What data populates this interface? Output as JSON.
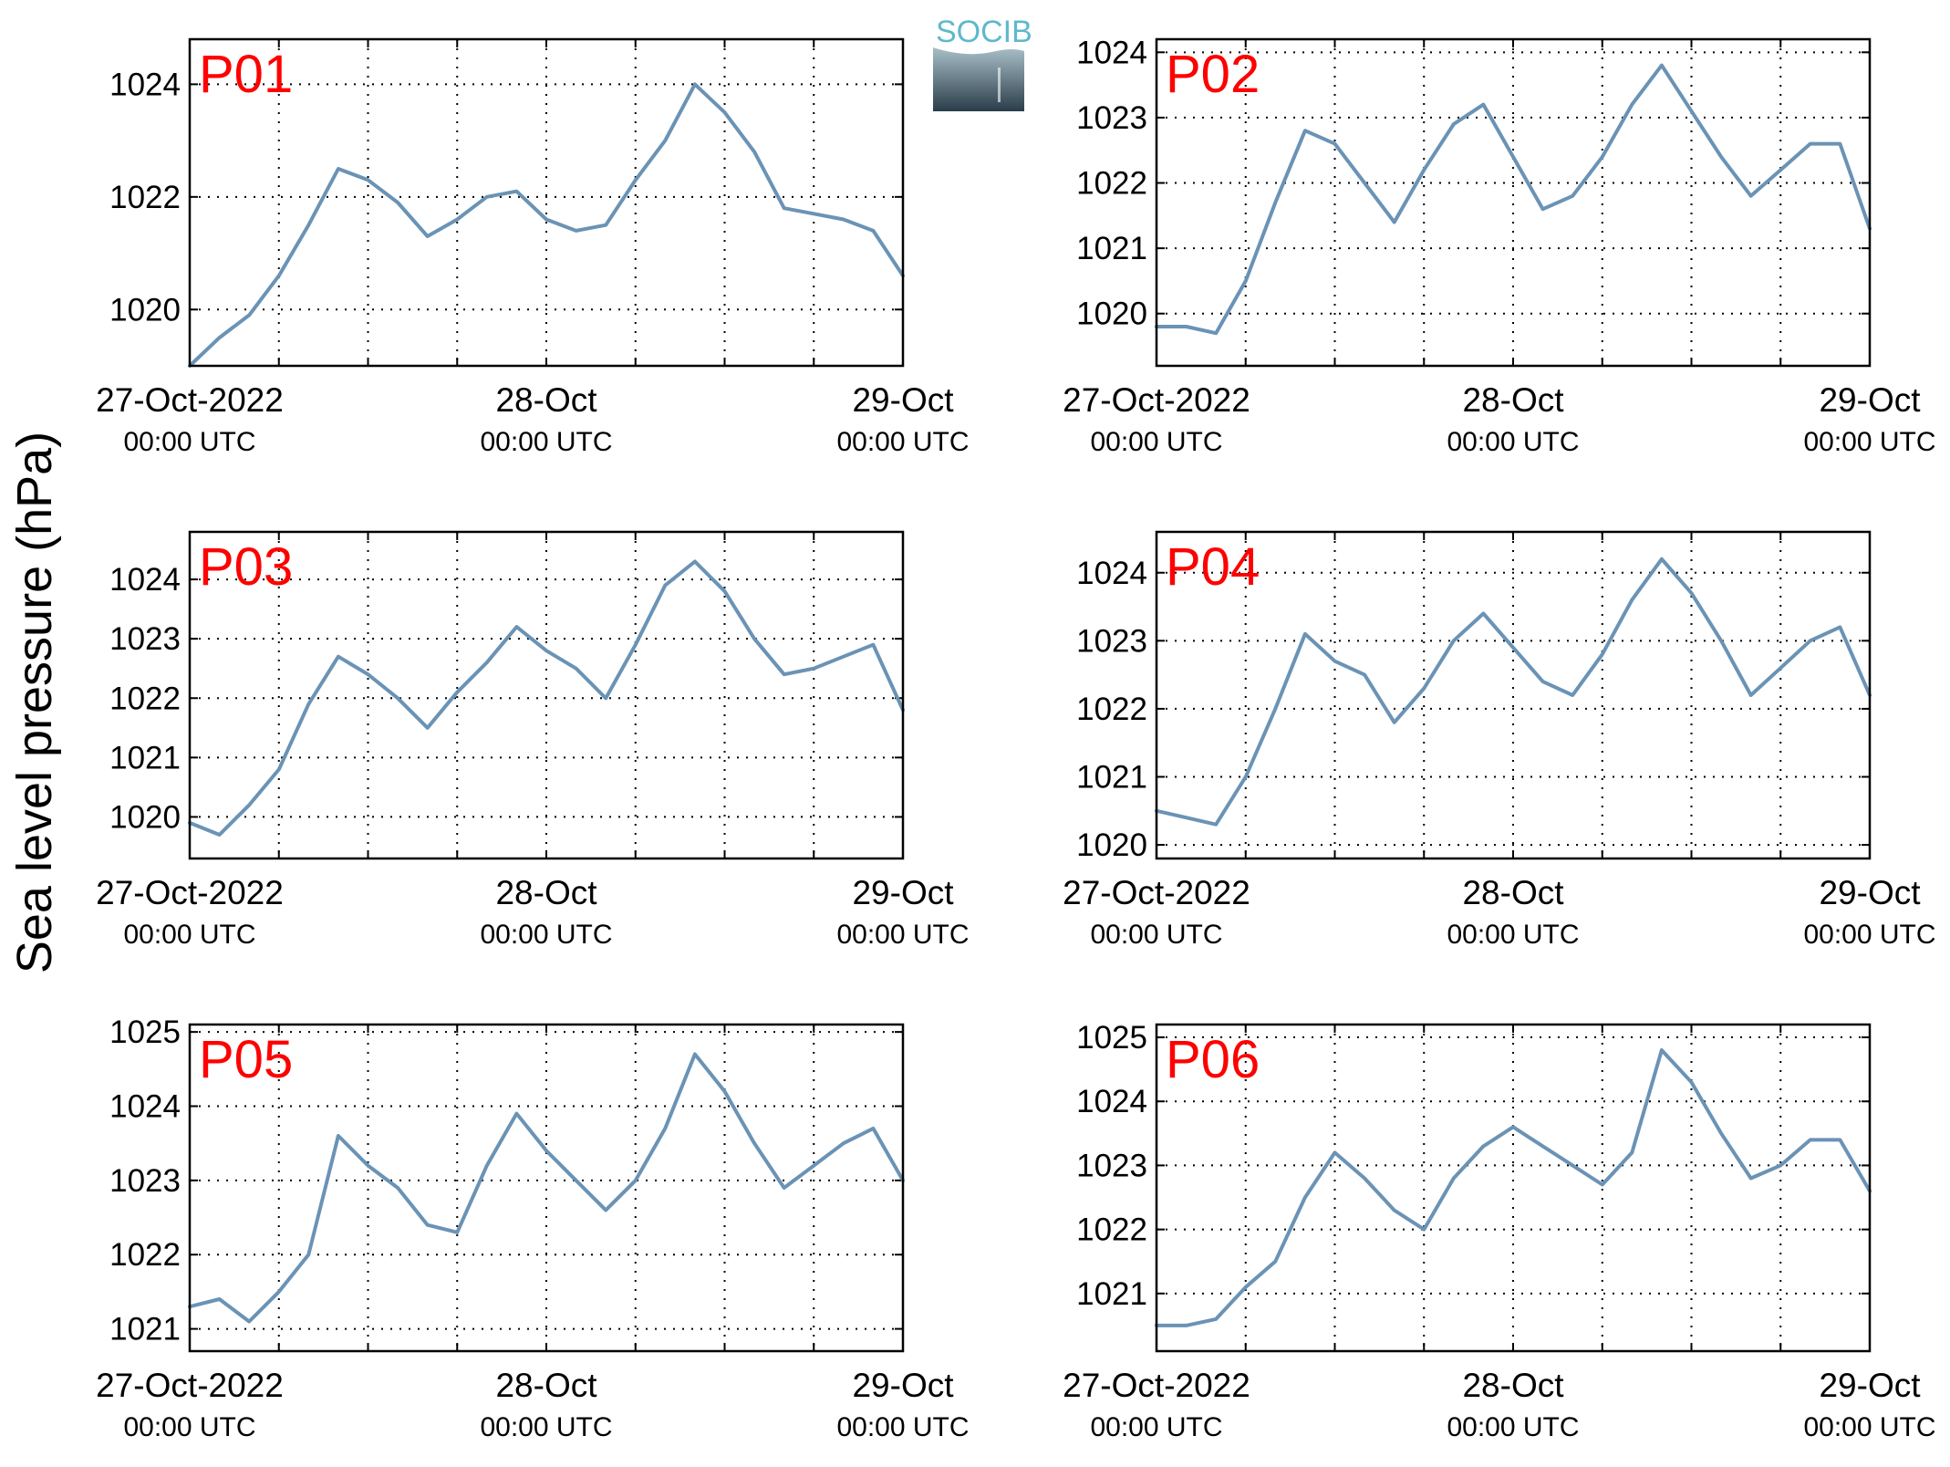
{
  "figure": {
    "ylabel": "Sea level pressure (hPa)",
    "logo_text": "SOCIB",
    "colors": {
      "line": "#6a93b5",
      "label": "#ff0000",
      "logo_top": "#5fb8cc",
      "logo_bottom": "#2a3d4a"
    }
  },
  "chart_data": [
    {
      "type": "line",
      "title": "P01",
      "xlabel": "",
      "ylabel": "Sea level pressure (hPa)",
      "xlim": [
        "2022-10-27T00:00",
        "2022-10-29T00:00"
      ],
      "ylim": [
        1019,
        1024.8
      ],
      "yticks": [
        1020,
        1022,
        1024
      ],
      "xtick_labels": [
        [
          "27-Oct-2022",
          "00:00 UTC"
        ],
        [
          "28-Oct",
          "00:00 UTC"
        ],
        [
          "29-Oct",
          "00:00 UTC"
        ]
      ],
      "grid": true,
      "series": [
        {
          "x": [
            "2022-10-27T00:00",
            "2022-10-27T02:00",
            "2022-10-27T04:00",
            "2022-10-27T06:00",
            "2022-10-27T08:00",
            "2022-10-27T10:00",
            "2022-10-27T12:00",
            "2022-10-27T14:00",
            "2022-10-27T16:00",
            "2022-10-27T18:00",
            "2022-10-27T20:00",
            "2022-10-27T22:00",
            "2022-10-28T00:00",
            "2022-10-28T02:00",
            "2022-10-28T04:00",
            "2022-10-28T06:00",
            "2022-10-28T08:00",
            "2022-10-28T10:00",
            "2022-10-28T12:00",
            "2022-10-28T14:00",
            "2022-10-28T16:00",
            "2022-10-28T18:00",
            "2022-10-28T20:00",
            "2022-10-28T22:00",
            "2022-10-29T00:00"
          ],
          "y": [
            1019.0,
            1019.5,
            1019.9,
            1020.6,
            1021.5,
            1022.5,
            1022.3,
            1021.9,
            1021.3,
            1021.6,
            1022.0,
            1022.1,
            1021.6,
            1021.4,
            1021.5,
            1022.3,
            1023.0,
            1024.0,
            1023.5,
            1022.8,
            1021.8,
            1021.7,
            1021.6,
            1021.4,
            1020.6
          ]
        }
      ]
    },
    {
      "type": "line",
      "title": "P02",
      "xlabel": "",
      "ylabel": "Sea level pressure (hPa)",
      "xlim": [
        "2022-10-27T00:00",
        "2022-10-29T00:00"
      ],
      "ylim": [
        1019.2,
        1024.2
      ],
      "yticks": [
        1020,
        1021,
        1022,
        1023,
        1024
      ],
      "xtick_labels": [
        [
          "27-Oct-2022",
          "00:00 UTC"
        ],
        [
          "28-Oct",
          "00:00 UTC"
        ],
        [
          "29-Oct",
          "00:00 UTC"
        ]
      ],
      "grid": true,
      "series": [
        {
          "x": [
            "2022-10-27T00:00",
            "2022-10-27T02:00",
            "2022-10-27T04:00",
            "2022-10-27T06:00",
            "2022-10-27T08:00",
            "2022-10-27T10:00",
            "2022-10-27T12:00",
            "2022-10-27T14:00",
            "2022-10-27T16:00",
            "2022-10-27T18:00",
            "2022-10-27T20:00",
            "2022-10-27T22:00",
            "2022-10-28T00:00",
            "2022-10-28T02:00",
            "2022-10-28T04:00",
            "2022-10-28T06:00",
            "2022-10-28T08:00",
            "2022-10-28T10:00",
            "2022-10-28T12:00",
            "2022-10-28T14:00",
            "2022-10-28T16:00",
            "2022-10-28T18:00",
            "2022-10-28T20:00",
            "2022-10-28T22:00",
            "2022-10-29T00:00"
          ],
          "y": [
            1019.8,
            1019.8,
            1019.7,
            1020.5,
            1021.7,
            1022.8,
            1022.6,
            1022.0,
            1021.4,
            1022.2,
            1022.9,
            1023.2,
            1022.4,
            1021.6,
            1021.8,
            1022.4,
            1023.2,
            1023.8,
            1023.1,
            1022.4,
            1021.8,
            1022.2,
            1022.6,
            1022.6,
            1021.3
          ]
        }
      ]
    },
    {
      "type": "line",
      "title": "P03",
      "xlabel": "",
      "ylabel": "Sea level pressure (hPa)",
      "xlim": [
        "2022-10-27T00:00",
        "2022-10-29T00:00"
      ],
      "ylim": [
        1019.3,
        1024.8
      ],
      "yticks": [
        1020,
        1021,
        1022,
        1023,
        1024
      ],
      "xtick_labels": [
        [
          "27-Oct-2022",
          "00:00 UTC"
        ],
        [
          "28-Oct",
          "00:00 UTC"
        ],
        [
          "29-Oct",
          "00:00 UTC"
        ]
      ],
      "grid": true,
      "series": [
        {
          "x": [
            "2022-10-27T00:00",
            "2022-10-27T02:00",
            "2022-10-27T04:00",
            "2022-10-27T06:00",
            "2022-10-27T08:00",
            "2022-10-27T10:00",
            "2022-10-27T12:00",
            "2022-10-27T14:00",
            "2022-10-27T16:00",
            "2022-10-27T18:00",
            "2022-10-27T20:00",
            "2022-10-27T22:00",
            "2022-10-28T00:00",
            "2022-10-28T02:00",
            "2022-10-28T04:00",
            "2022-10-28T06:00",
            "2022-10-28T08:00",
            "2022-10-28T10:00",
            "2022-10-28T12:00",
            "2022-10-28T14:00",
            "2022-10-28T16:00",
            "2022-10-28T18:00",
            "2022-10-28T20:00",
            "2022-10-28T22:00",
            "2022-10-29T00:00"
          ],
          "y": [
            1019.9,
            1019.7,
            1020.2,
            1020.8,
            1021.9,
            1022.7,
            1022.4,
            1022.0,
            1021.5,
            1022.1,
            1022.6,
            1023.2,
            1022.8,
            1022.5,
            1022.0,
            1022.9,
            1023.9,
            1024.3,
            1023.8,
            1023.0,
            1022.4,
            1022.5,
            1022.7,
            1022.9,
            1021.8
          ]
        }
      ]
    },
    {
      "type": "line",
      "title": "P04",
      "xlabel": "",
      "ylabel": "Sea level pressure (hPa)",
      "xlim": [
        "2022-10-27T00:00",
        "2022-10-29T00:00"
      ],
      "ylim": [
        1019.8,
        1024.6
      ],
      "yticks": [
        1020,
        1021,
        1022,
        1023,
        1024
      ],
      "xtick_labels": [
        [
          "27-Oct-2022",
          "00:00 UTC"
        ],
        [
          "28-Oct",
          "00:00 UTC"
        ],
        [
          "29-Oct",
          "00:00 UTC"
        ]
      ],
      "grid": true,
      "series": [
        {
          "x": [
            "2022-10-27T00:00",
            "2022-10-27T02:00",
            "2022-10-27T04:00",
            "2022-10-27T06:00",
            "2022-10-27T08:00",
            "2022-10-27T10:00",
            "2022-10-27T12:00",
            "2022-10-27T14:00",
            "2022-10-27T16:00",
            "2022-10-27T18:00",
            "2022-10-27T20:00",
            "2022-10-27T22:00",
            "2022-10-28T00:00",
            "2022-10-28T02:00",
            "2022-10-28T04:00",
            "2022-10-28T06:00",
            "2022-10-28T08:00",
            "2022-10-28T10:00",
            "2022-10-28T12:00",
            "2022-10-28T14:00",
            "2022-10-28T16:00",
            "2022-10-28T18:00",
            "2022-10-28T20:00",
            "2022-10-28T22:00",
            "2022-10-29T00:00"
          ],
          "y": [
            1020.5,
            1020.4,
            1020.3,
            1021.0,
            1022.0,
            1023.1,
            1022.7,
            1022.5,
            1021.8,
            1022.3,
            1023.0,
            1023.4,
            1022.9,
            1022.4,
            1022.2,
            1022.8,
            1023.6,
            1024.2,
            1023.7,
            1023.0,
            1022.2,
            1022.6,
            1023.0,
            1023.2,
            1022.2
          ]
        }
      ]
    },
    {
      "type": "line",
      "title": "P05",
      "xlabel": "",
      "ylabel": "Sea level pressure (hPa)",
      "xlim": [
        "2022-10-27T00:00",
        "2022-10-29T00:00"
      ],
      "ylim": [
        1020.7,
        1025.1
      ],
      "yticks": [
        1021,
        1022,
        1023,
        1024,
        1025
      ],
      "xtick_labels": [
        [
          "27-Oct-2022",
          "00:00 UTC"
        ],
        [
          "28-Oct",
          "00:00 UTC"
        ],
        [
          "29-Oct",
          "00:00 UTC"
        ]
      ],
      "grid": true,
      "series": [
        {
          "x": [
            "2022-10-27T00:00",
            "2022-10-27T02:00",
            "2022-10-27T04:00",
            "2022-10-27T06:00",
            "2022-10-27T08:00",
            "2022-10-27T10:00",
            "2022-10-27T12:00",
            "2022-10-27T14:00",
            "2022-10-27T16:00",
            "2022-10-27T18:00",
            "2022-10-27T20:00",
            "2022-10-27T22:00",
            "2022-10-28T00:00",
            "2022-10-28T02:00",
            "2022-10-28T04:00",
            "2022-10-28T06:00",
            "2022-10-28T08:00",
            "2022-10-28T10:00",
            "2022-10-28T12:00",
            "2022-10-28T14:00",
            "2022-10-28T16:00",
            "2022-10-28T18:00",
            "2022-10-28T20:00",
            "2022-10-28T22:00",
            "2022-10-29T00:00"
          ],
          "y": [
            1021.3,
            1021.4,
            1021.1,
            1021.5,
            1022.0,
            1023.6,
            1023.2,
            1022.9,
            1022.4,
            1022.3,
            1023.2,
            1023.9,
            1023.4,
            1023.0,
            1022.6,
            1023.0,
            1023.7,
            1024.7,
            1024.2,
            1023.5,
            1022.9,
            1023.2,
            1023.5,
            1023.7,
            1023.0
          ]
        }
      ]
    },
    {
      "type": "line",
      "title": "P06",
      "xlabel": "",
      "ylabel": "Sea level pressure (hPa)",
      "xlim": [
        "2022-10-27T00:00",
        "2022-10-29T00:00"
      ],
      "ylim": [
        1020.1,
        1025.2
      ],
      "yticks": [
        1021,
        1022,
        1023,
        1024,
        1025
      ],
      "xtick_labels": [
        [
          "27-Oct-2022",
          "00:00 UTC"
        ],
        [
          "28-Oct",
          "00:00 UTC"
        ],
        [
          "29-Oct",
          "00:00 UTC"
        ]
      ],
      "grid": true,
      "series": [
        {
          "x": [
            "2022-10-27T00:00",
            "2022-10-27T02:00",
            "2022-10-27T04:00",
            "2022-10-27T06:00",
            "2022-10-27T08:00",
            "2022-10-27T10:00",
            "2022-10-27T12:00",
            "2022-10-27T14:00",
            "2022-10-27T16:00",
            "2022-10-27T18:00",
            "2022-10-27T20:00",
            "2022-10-27T22:00",
            "2022-10-28T00:00",
            "2022-10-28T02:00",
            "2022-10-28T04:00",
            "2022-10-28T06:00",
            "2022-10-28T08:00",
            "2022-10-28T10:00",
            "2022-10-28T12:00",
            "2022-10-28T14:00",
            "2022-10-28T16:00",
            "2022-10-28T18:00",
            "2022-10-28T20:00",
            "2022-10-28T22:00",
            "2022-10-29T00:00"
          ],
          "y": [
            1020.5,
            1020.5,
            1020.6,
            1021.1,
            1021.5,
            1022.5,
            1023.2,
            1022.8,
            1022.3,
            1022.0,
            1022.8,
            1023.3,
            1023.6,
            1023.3,
            1023.0,
            1022.7,
            1023.2,
            1024.8,
            1024.3,
            1023.5,
            1022.8,
            1023.0,
            1023.4,
            1023.4,
            1022.6
          ]
        }
      ]
    }
  ]
}
